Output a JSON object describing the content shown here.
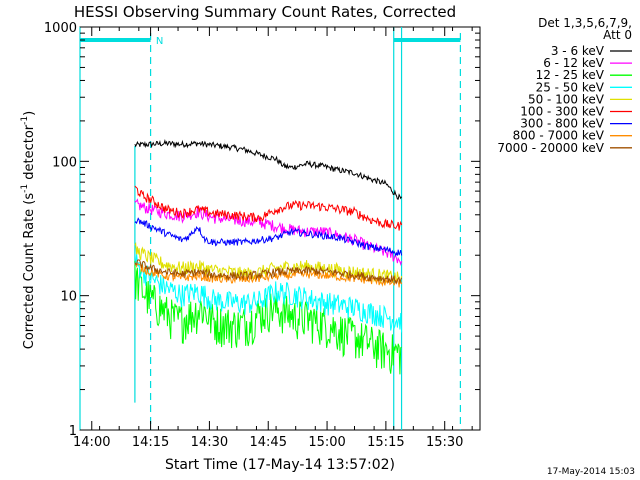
{
  "chart_data": {
    "type": "line",
    "title": "HESSI Observing Summary Count Rates, Corrected",
    "xlabel": "Start Time (17-May-14 13:57:02)",
    "ylabel_main": "Corrected Count Rate (s",
    "ylabel_sup": "-1",
    "ylabel_mid": " detector",
    "ylabel_sup2": "-1",
    "ylabel_end": ")",
    "x_unit": "minutes since 13:57:02",
    "xlim": [
      0,
      102
    ],
    "ylim": [
      1,
      1000
    ],
    "y_scale": "log",
    "x_ticks": [
      {
        "v": 3,
        "label": "14:00"
      },
      {
        "v": 18,
        "label": "14:15"
      },
      {
        "v": 33,
        "label": "14:30"
      },
      {
        "v": 48,
        "label": "14:45"
      },
      {
        "v": 63,
        "label": "15:00"
      },
      {
        "v": 78,
        "label": "15:15"
      },
      {
        "v": 93,
        "label": "15:30"
      }
    ],
    "y_ticks": [
      {
        "v": 1,
        "label": "1"
      },
      {
        "v": 10,
        "label": "10"
      },
      {
        "v": 100,
        "label": "100"
      },
      {
        "v": 1000,
        "label": "1000"
      }
    ],
    "legend_header": [
      "Det 1,3,5,6,7,9,",
      "Att 0"
    ],
    "legend_placement": "right",
    "grid": false,
    "series": [
      {
        "name": "3 - 6 keV",
        "color": "#000000",
        "x": [
          14,
          18,
          22,
          26,
          30,
          34,
          38,
          42,
          46,
          50,
          52,
          54,
          58,
          62,
          66,
          70,
          74,
          78,
          81,
          82
        ],
        "y": [
          132,
          134,
          136,
          134,
          136,
          132,
          128,
          122,
          112,
          104,
          92,
          90,
          96,
          92,
          86,
          82,
          74,
          68,
          55,
          52
        ]
      },
      {
        "name": "6 - 12 keV",
        "color": "#ff00ff",
        "x": [
          14,
          18,
          22,
          26,
          30,
          34,
          38,
          42,
          46,
          50,
          54,
          58,
          62,
          66,
          70,
          74,
          78,
          81,
          82
        ],
        "y": [
          48,
          44,
          41,
          39,
          42,
          38,
          37,
          36,
          35,
          33,
          31,
          30,
          30,
          28,
          26,
          23,
          21,
          19,
          18
        ]
      },
      {
        "name": "12 - 25 keV",
        "color": "#00ff00",
        "x": [
          14,
          16,
          18,
          20,
          22,
          25,
          28,
          31,
          34,
          37,
          40,
          43,
          46,
          49,
          52,
          55,
          58,
          61,
          64,
          67,
          70,
          73,
          76,
          79,
          81,
          82
        ],
        "y": [
          14,
          11,
          9.5,
          8.5,
          7.5,
          6.5,
          7.2,
          8.2,
          6.5,
          6.2,
          6.0,
          6.4,
          7.5,
          8.2,
          7.6,
          7.0,
          6.8,
          6.4,
          6.0,
          5.4,
          5.0,
          4.6,
          4.2,
          3.9,
          3.8,
          3.7
        ]
      },
      {
        "name": "25 - 50 keV",
        "color": "#00ffff",
        "x": [
          14,
          18,
          22,
          26,
          30,
          34,
          38,
          42,
          46,
          50,
          54,
          58,
          62,
          66,
          70,
          74,
          78,
          81,
          82
        ],
        "y": [
          18,
          13.5,
          11.5,
          10.2,
          10.8,
          9.4,
          9.0,
          8.8,
          9.2,
          10.8,
          10.4,
          9.6,
          9.0,
          8.6,
          8.2,
          7.6,
          7.0,
          6.6,
          6.5
        ]
      },
      {
        "name": "50 - 100 keV",
        "color": "#e0e000",
        "x": [
          14,
          18,
          22,
          26,
          30,
          34,
          38,
          42,
          46,
          50,
          54,
          58,
          62,
          66,
          70,
          74,
          78,
          81,
          82
        ],
        "y": [
          22,
          19,
          17,
          16,
          16.5,
          15.5,
          15,
          14.5,
          15,
          16,
          16.5,
          16.5,
          16,
          15.5,
          15,
          14.5,
          14,
          13.5,
          13
        ]
      },
      {
        "name": "100 - 300 keV",
        "color": "#ff0000",
        "x": [
          14,
          16,
          18,
          22,
          26,
          30,
          34,
          38,
          42,
          46,
          50,
          54,
          58,
          62,
          66,
          70,
          74,
          78,
          81,
          82
        ],
        "y": [
          64,
          55,
          52,
          44,
          41,
          44,
          41,
          40,
          39,
          38,
          44,
          47,
          47,
          46,
          44,
          42,
          37,
          34,
          33,
          33
        ]
      },
      {
        "name": "300 - 800 keV",
        "color": "#0000ff",
        "x": [
          14,
          18,
          22,
          26,
          28,
          30,
          32,
          34,
          38,
          42,
          46,
          50,
          54,
          58,
          62,
          66,
          70,
          74,
          78,
          81,
          82
        ],
        "y": [
          37,
          33,
          29,
          26,
          28,
          33,
          26,
          25,
          25,
          25,
          26,
          27,
          30,
          29,
          28,
          27,
          25,
          23,
          22,
          21,
          21
        ]
      },
      {
        "name": "800 - 7000 keV",
        "color": "#ff8c00",
        "x": [
          14,
          18,
          22,
          26,
          30,
          34,
          38,
          42,
          46,
          50,
          54,
          58,
          62,
          66,
          70,
          74,
          78,
          81,
          82
        ],
        "y": [
          17,
          15,
          14,
          13.5,
          14,
          13.4,
          13.2,
          13.2,
          13.5,
          14,
          14.2,
          14.4,
          14.2,
          13.8,
          13.4,
          13,
          12.6,
          12.4,
          12.2
        ]
      },
      {
        "name": "7000 - 20000 keV",
        "color": "#a05000",
        "x": [
          14,
          18,
          22,
          26,
          30,
          34,
          38,
          42,
          46,
          50,
          54,
          58,
          62,
          66,
          70,
          74,
          78,
          81,
          82
        ],
        "y": [
          18,
          16,
          15,
          14.5,
          15,
          14.3,
          14.1,
          14.1,
          14.4,
          15,
          15.2,
          15.4,
          15.2,
          14.8,
          14.3,
          13.8,
          13.4,
          13.1,
          13
        ]
      }
    ],
    "markers": {
      "color": "#00dddd",
      "solid_lines": [
        0,
        14,
        80,
        82
      ],
      "dashed_lines": [
        18,
        97
      ],
      "top_segments": [
        [
          0,
          18
        ],
        [
          80,
          97
        ]
      ],
      "night_start": 14,
      "night_min_y": 1.6,
      "flag_label": "N",
      "flag_at": 18
    },
    "timestamp": "17-May-2014 15:03"
  }
}
